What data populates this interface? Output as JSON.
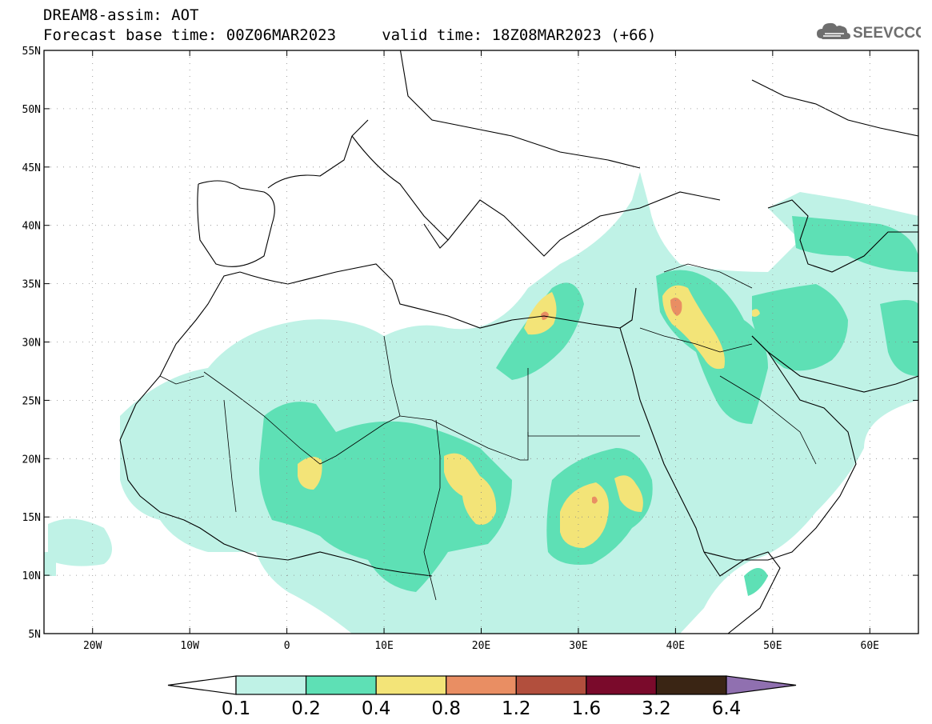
{
  "header": {
    "title_line1": "DREAM8-assim: AOT",
    "title_line2": "Forecast base time: 00Z06MAR2023     valid time: 18Z08MAR2023 (+66)",
    "logo_text": "SEEVCCC",
    "logo_icon": "cloud-icon"
  },
  "map": {
    "lon_range": [
      -25,
      65
    ],
    "lat_range": [
      5,
      55
    ],
    "lat_labels": [
      "55N",
      "50N",
      "45N",
      "40N",
      "35N",
      "30N",
      "25N",
      "20N",
      "15N",
      "10N",
      "5N"
    ],
    "lat_values": [
      55,
      50,
      45,
      40,
      35,
      30,
      25,
      20,
      15,
      10,
      5
    ],
    "lon_labels": [
      "20W",
      "10W",
      "0",
      "10E",
      "20E",
      "30E",
      "40E",
      "50E",
      "60E"
    ],
    "lon_values": [
      -20,
      -10,
      0,
      10,
      20,
      30,
      40,
      50,
      60
    ]
  },
  "colorbar": {
    "labels": [
      "0.1",
      "0.2",
      "0.4",
      "0.8",
      "1.2",
      "1.6",
      "3.2",
      "6.4"
    ],
    "colors": {
      "under": "#ffffff",
      "c1": "#bff2e6",
      "c2": "#5ee0b5",
      "c3": "#f3e478",
      "c4": "#e98e63",
      "c5": "#b24f3d",
      "c6": "#7a0a2b",
      "c7": "#3a2514",
      "over": "#9070b0"
    }
  }
}
